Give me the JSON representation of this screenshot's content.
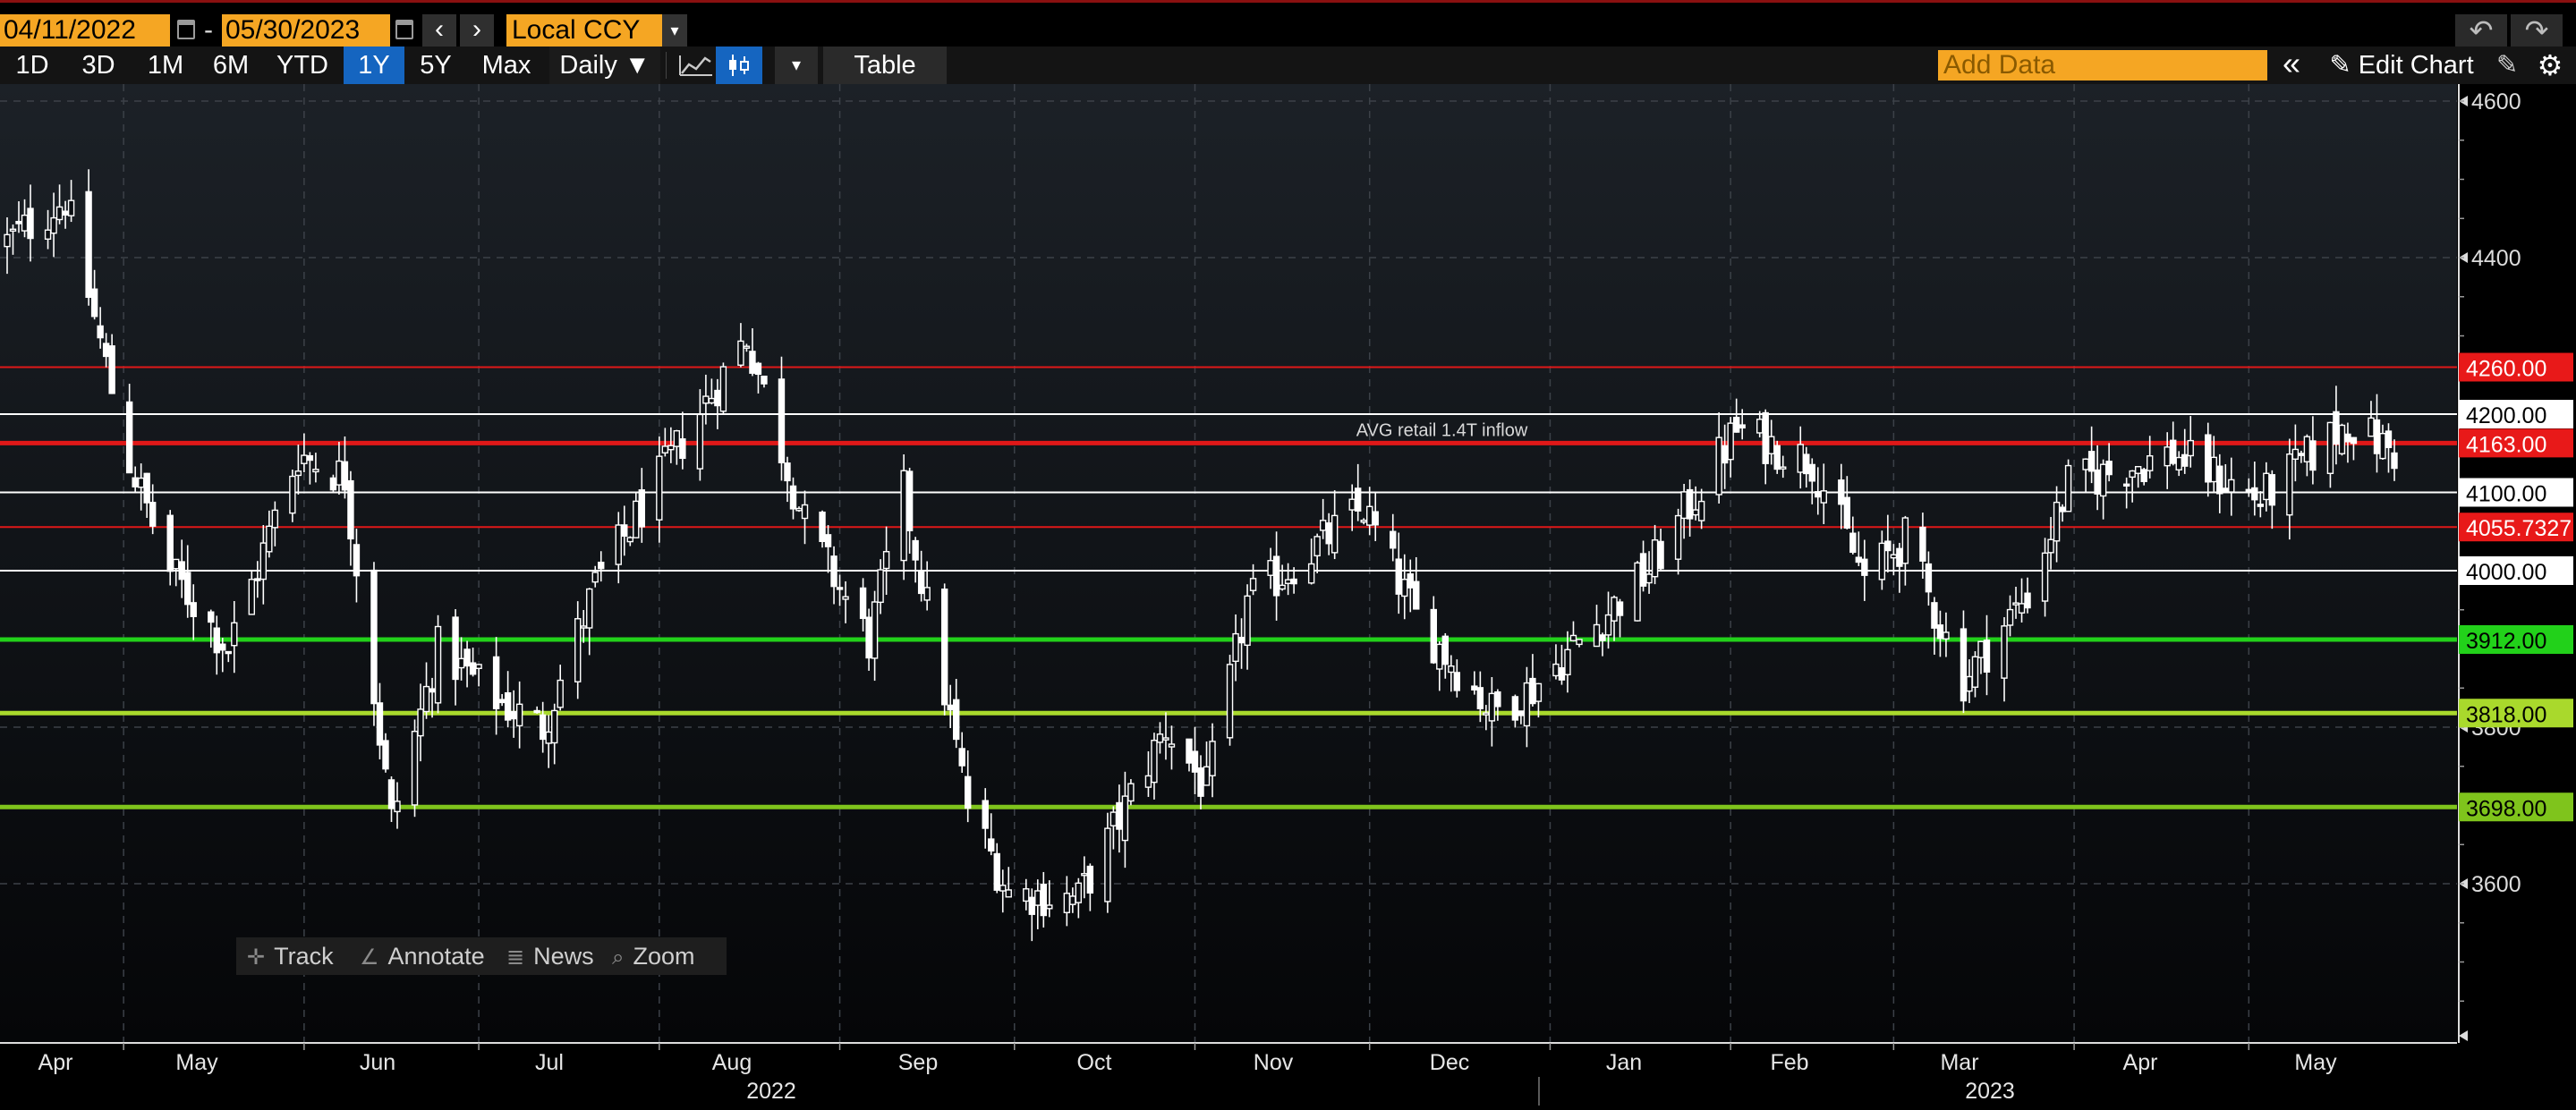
{
  "range": {
    "start_date": "04/11/2022",
    "end_date": "05/30/2023",
    "dash": "-",
    "prev": "‹",
    "next": "›",
    "currency": "Local CCY",
    "currency_arrow": "▾"
  },
  "history": {
    "undo": "↶",
    "redo": "↷"
  },
  "toolbar": {
    "periods": [
      "1D",
      "3D",
      "1M",
      "6M",
      "YTD",
      "1Y",
      "5Y",
      "Max"
    ],
    "active_period": "1Y",
    "frequency": "Daily ▼",
    "chart_type_arrow": "▾",
    "table": "Table",
    "add_data_placeholder": "Add Data",
    "collapse": "«",
    "edit_chart": "✎ Edit Chart",
    "pencil": "✎",
    "settings": "⚙"
  },
  "palette": {
    "track": "Track",
    "annotate": "Annotate",
    "news": "News",
    "zoom": "Zoom"
  },
  "colors": {
    "background_top": "#1c2127",
    "background_bottom": "#050608",
    "grid": "#3c4148",
    "candle": "#ffffff",
    "resistance": "#e01818",
    "resistance_label": "#e81919",
    "neutral_line": "#ffffff",
    "support_green": "#22d11a",
    "support_lime": "#a9d92c",
    "support_olive": "#7fc41c"
  },
  "chart_data": {
    "type": "candlestick",
    "x_axis": {
      "months": [
        "Apr",
        "May",
        "Jun",
        "Jul",
        "Aug",
        "Sep",
        "Oct",
        "Nov",
        "Dec",
        "Jan",
        "Feb",
        "Mar",
        "Apr",
        "May"
      ],
      "years": [
        "2022",
        "2023"
      ]
    },
    "y_axis": {
      "ticks": [
        3600,
        3800,
        4000,
        4100,
        4200,
        4400,
        4600
      ],
      "range": [
        3440,
        4625
      ]
    },
    "grid": true,
    "horizontal_lines": [
      {
        "value": 4260.0,
        "label": "4260.00",
        "style": "thin",
        "color": "#e01818"
      },
      {
        "value": 4200.0,
        "label": "4200.00",
        "style": "thin",
        "color": "#ffffff"
      },
      {
        "value": 4163.0,
        "label": "4163.00",
        "style": "thick",
        "color": "#e01818"
      },
      {
        "value": 4100.0,
        "label": "4100.00",
        "style": "thin",
        "color": "#ffffff"
      },
      {
        "value": 4055.7327,
        "label": "4055.7327",
        "style": "thin",
        "color": "#e01818"
      },
      {
        "value": 4000.0,
        "label": "4000.00",
        "style": "thin",
        "color": "#ffffff"
      },
      {
        "value": 3912.0,
        "label": "3912.00",
        "style": "thick",
        "color": "#22d11a"
      },
      {
        "value": 3818.0,
        "label": "3818.00",
        "style": "thick",
        "color": "#a9d92c"
      },
      {
        "value": 3698.0,
        "label": "3698.00",
        "style": "thick",
        "color": "#7fc41c"
      }
    ],
    "annotation": {
      "text": "AVG retail 1.4T inflow",
      "date": "2022-12-01",
      "value": 4163
    },
    "anchors": [
      [
        "2022-04-11",
        4420
      ],
      [
        "2022-04-21",
        4475
      ],
      [
        "2022-05-02",
        4140
      ],
      [
        "2022-05-09",
        4000
      ],
      [
        "2022-05-19",
        3900
      ],
      [
        "2022-05-31",
        4150
      ],
      [
        "2022-06-08",
        4120
      ],
      [
        "2022-06-16",
        3680
      ],
      [
        "2022-06-24",
        3900
      ],
      [
        "2022-07-05",
        3830
      ],
      [
        "2022-07-12",
        3800
      ],
      [
        "2022-07-21",
        3980
      ],
      [
        "2022-08-02",
        4130
      ],
      [
        "2022-08-16",
        4300
      ],
      [
        "2022-08-26",
        4060
      ],
      [
        "2022-09-06",
        3910
      ],
      [
        "2022-09-12",
        4100
      ],
      [
        "2022-09-23",
        3700
      ],
      [
        "2022-09-30",
        3590
      ],
      [
        "2022-10-12",
        3580
      ],
      [
        "2022-10-27",
        3800
      ],
      [
        "2022-11-03",
        3720
      ],
      [
        "2022-11-10",
        3960
      ],
      [
        "2022-11-30",
        4080
      ],
      [
        "2022-12-09",
        3940
      ],
      [
        "2022-12-22",
        3820
      ],
      [
        "2022-12-29",
        3850
      ],
      [
        "2023-01-18",
        4000
      ],
      [
        "2023-02-02",
        4180
      ],
      [
        "2023-02-15",
        4140
      ],
      [
        "2023-02-24",
        3990
      ],
      [
        "2023-03-03",
        4040
      ],
      [
        "2023-03-13",
        3860
      ],
      [
        "2023-03-24",
        3970
      ],
      [
        "2023-03-31",
        4110
      ],
      [
        "2023-04-18",
        4150
      ],
      [
        "2023-05-03",
        4090
      ],
      [
        "2023-05-18",
        4190
      ],
      [
        "2023-05-26",
        4150
      ]
    ]
  }
}
